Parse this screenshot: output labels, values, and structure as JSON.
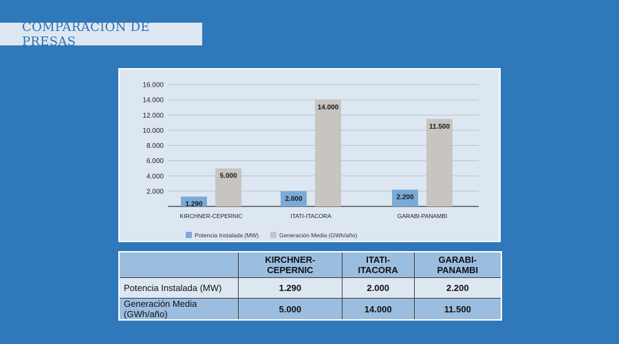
{
  "page_title": "COMPARACION DE PRESAS",
  "colors": {
    "background": "#2f78b9",
    "panel": "#dde7f2",
    "series_potencia": "#7aaad8",
    "series_generacion": "#c8c4c0",
    "table_header": "#9bbde0"
  },
  "chart_data": {
    "type": "bar",
    "title": "",
    "xlabel": "",
    "ylabel": "",
    "categories": [
      "KIRCHNER-CEPERNIC",
      "ITATI-ITACORA",
      "GARABI-PANAMBI"
    ],
    "series": [
      {
        "name": "Potencia Instalada (MW)",
        "values": [
          1290,
          2000,
          2200
        ],
        "labels": [
          "1.290",
          "2.000",
          "2.200"
        ]
      },
      {
        "name": "Generación Media (GWh/año)",
        "values": [
          5000,
          14000,
          11500
        ],
        "labels": [
          "5.000",
          "14.000",
          "11.500"
        ]
      }
    ],
    "ylim": [
      0,
      16000
    ],
    "yticks": [
      2000,
      4000,
      6000,
      8000,
      10000,
      12000,
      14000,
      16000
    ],
    "ytick_labels": [
      "2.000",
      "4.000",
      "6.000",
      "8.000",
      "10.000",
      "12.000",
      "14.000",
      "16.000"
    ],
    "grid": true,
    "legend_position": "bottom-left"
  },
  "table": {
    "headers": [
      "",
      "KIRCHNER-CEPERNIC",
      "ITATI-ITACORA",
      "GARABI-PANAMBI"
    ],
    "rows": [
      {
        "label": "Potencia Instalada (MW)",
        "cells": [
          "1.290",
          "2.000",
          "2.200"
        ]
      },
      {
        "label": "Generación Media (GWh/año)",
        "cells": [
          "5.000",
          "14.000",
          "11.500"
        ]
      }
    ]
  }
}
